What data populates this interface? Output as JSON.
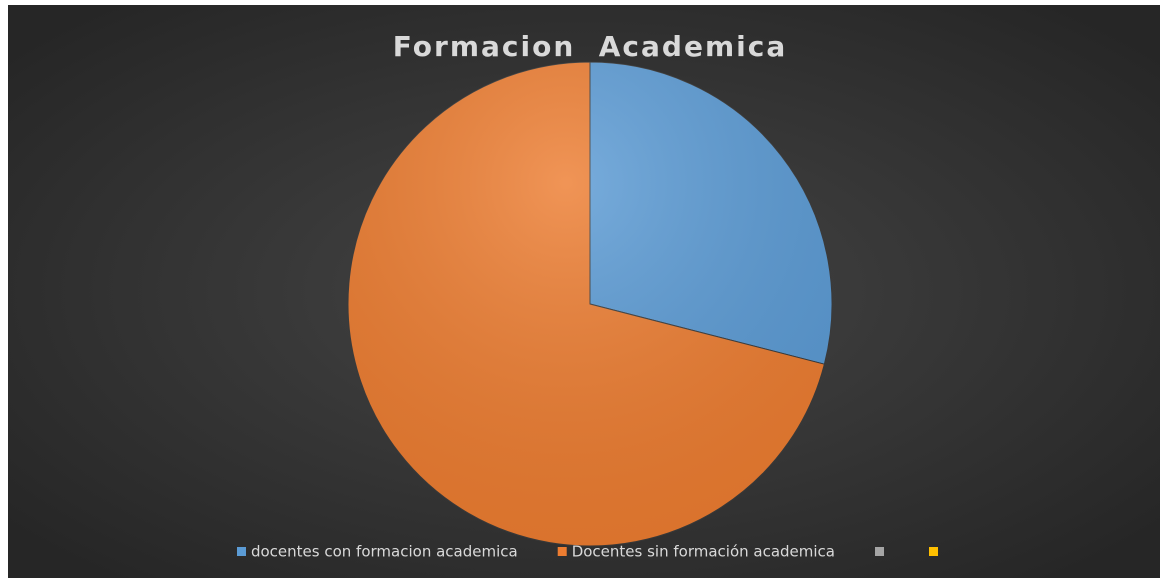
{
  "chart_data": {
    "type": "pie",
    "title": "Formacion  Academica",
    "categories": [
      "docentes con formacion academica",
      "Docentes sin formación academica",
      null,
      null
    ],
    "values": [
      29,
      71,
      0,
      0
    ],
    "colors": [
      "#5b9bd5",
      "#ed7d31",
      "#a5a5a5",
      "#ffc000"
    ],
    "legend": "bottom"
  }
}
